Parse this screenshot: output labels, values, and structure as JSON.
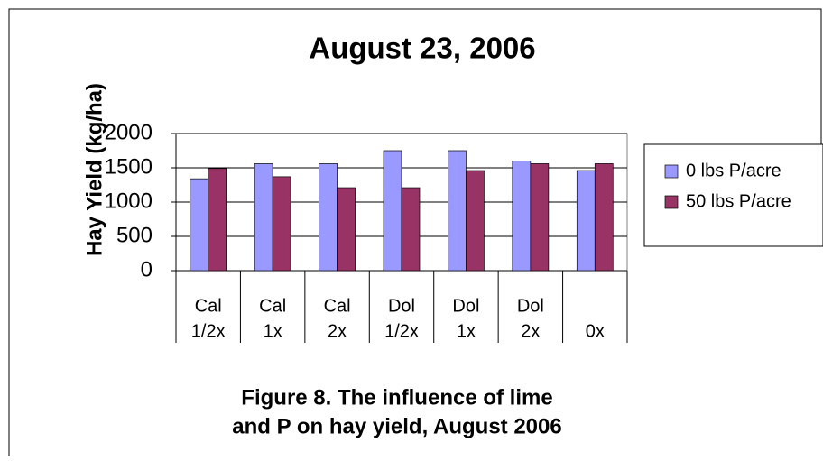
{
  "chart_data": {
    "type": "bar",
    "title": "August 23, 2006",
    "y_label": "Hay Yield (kg/ha)",
    "caption": [
      "Figure 8. The influence of lime",
      "and P on hay yield, August 2006"
    ],
    "category_groups": [
      "Cal",
      "Cal",
      "Cal",
      "Dol",
      "Dol",
      "Dol",
      null
    ],
    "categories": [
      "1/2x",
      "1x",
      "2x",
      "1/2x",
      "1x",
      "2x",
      "0x"
    ],
    "series": [
      {
        "name": "0 lbs P/acre",
        "color": "#9999ff",
        "values": [
          1340,
          1560,
          1560,
          1750,
          1750,
          1600,
          1460
        ]
      },
      {
        "name": "50 lbs P/acre",
        "color": "#993366",
        "values": [
          1490,
          1370,
          1210,
          1210,
          1460,
          1560,
          1560
        ]
      }
    ],
    "ylim": [
      0,
      2000
    ],
    "yticks": [
      0,
      500,
      1000,
      1500,
      2000
    ],
    "grid": true,
    "legend": "right"
  }
}
